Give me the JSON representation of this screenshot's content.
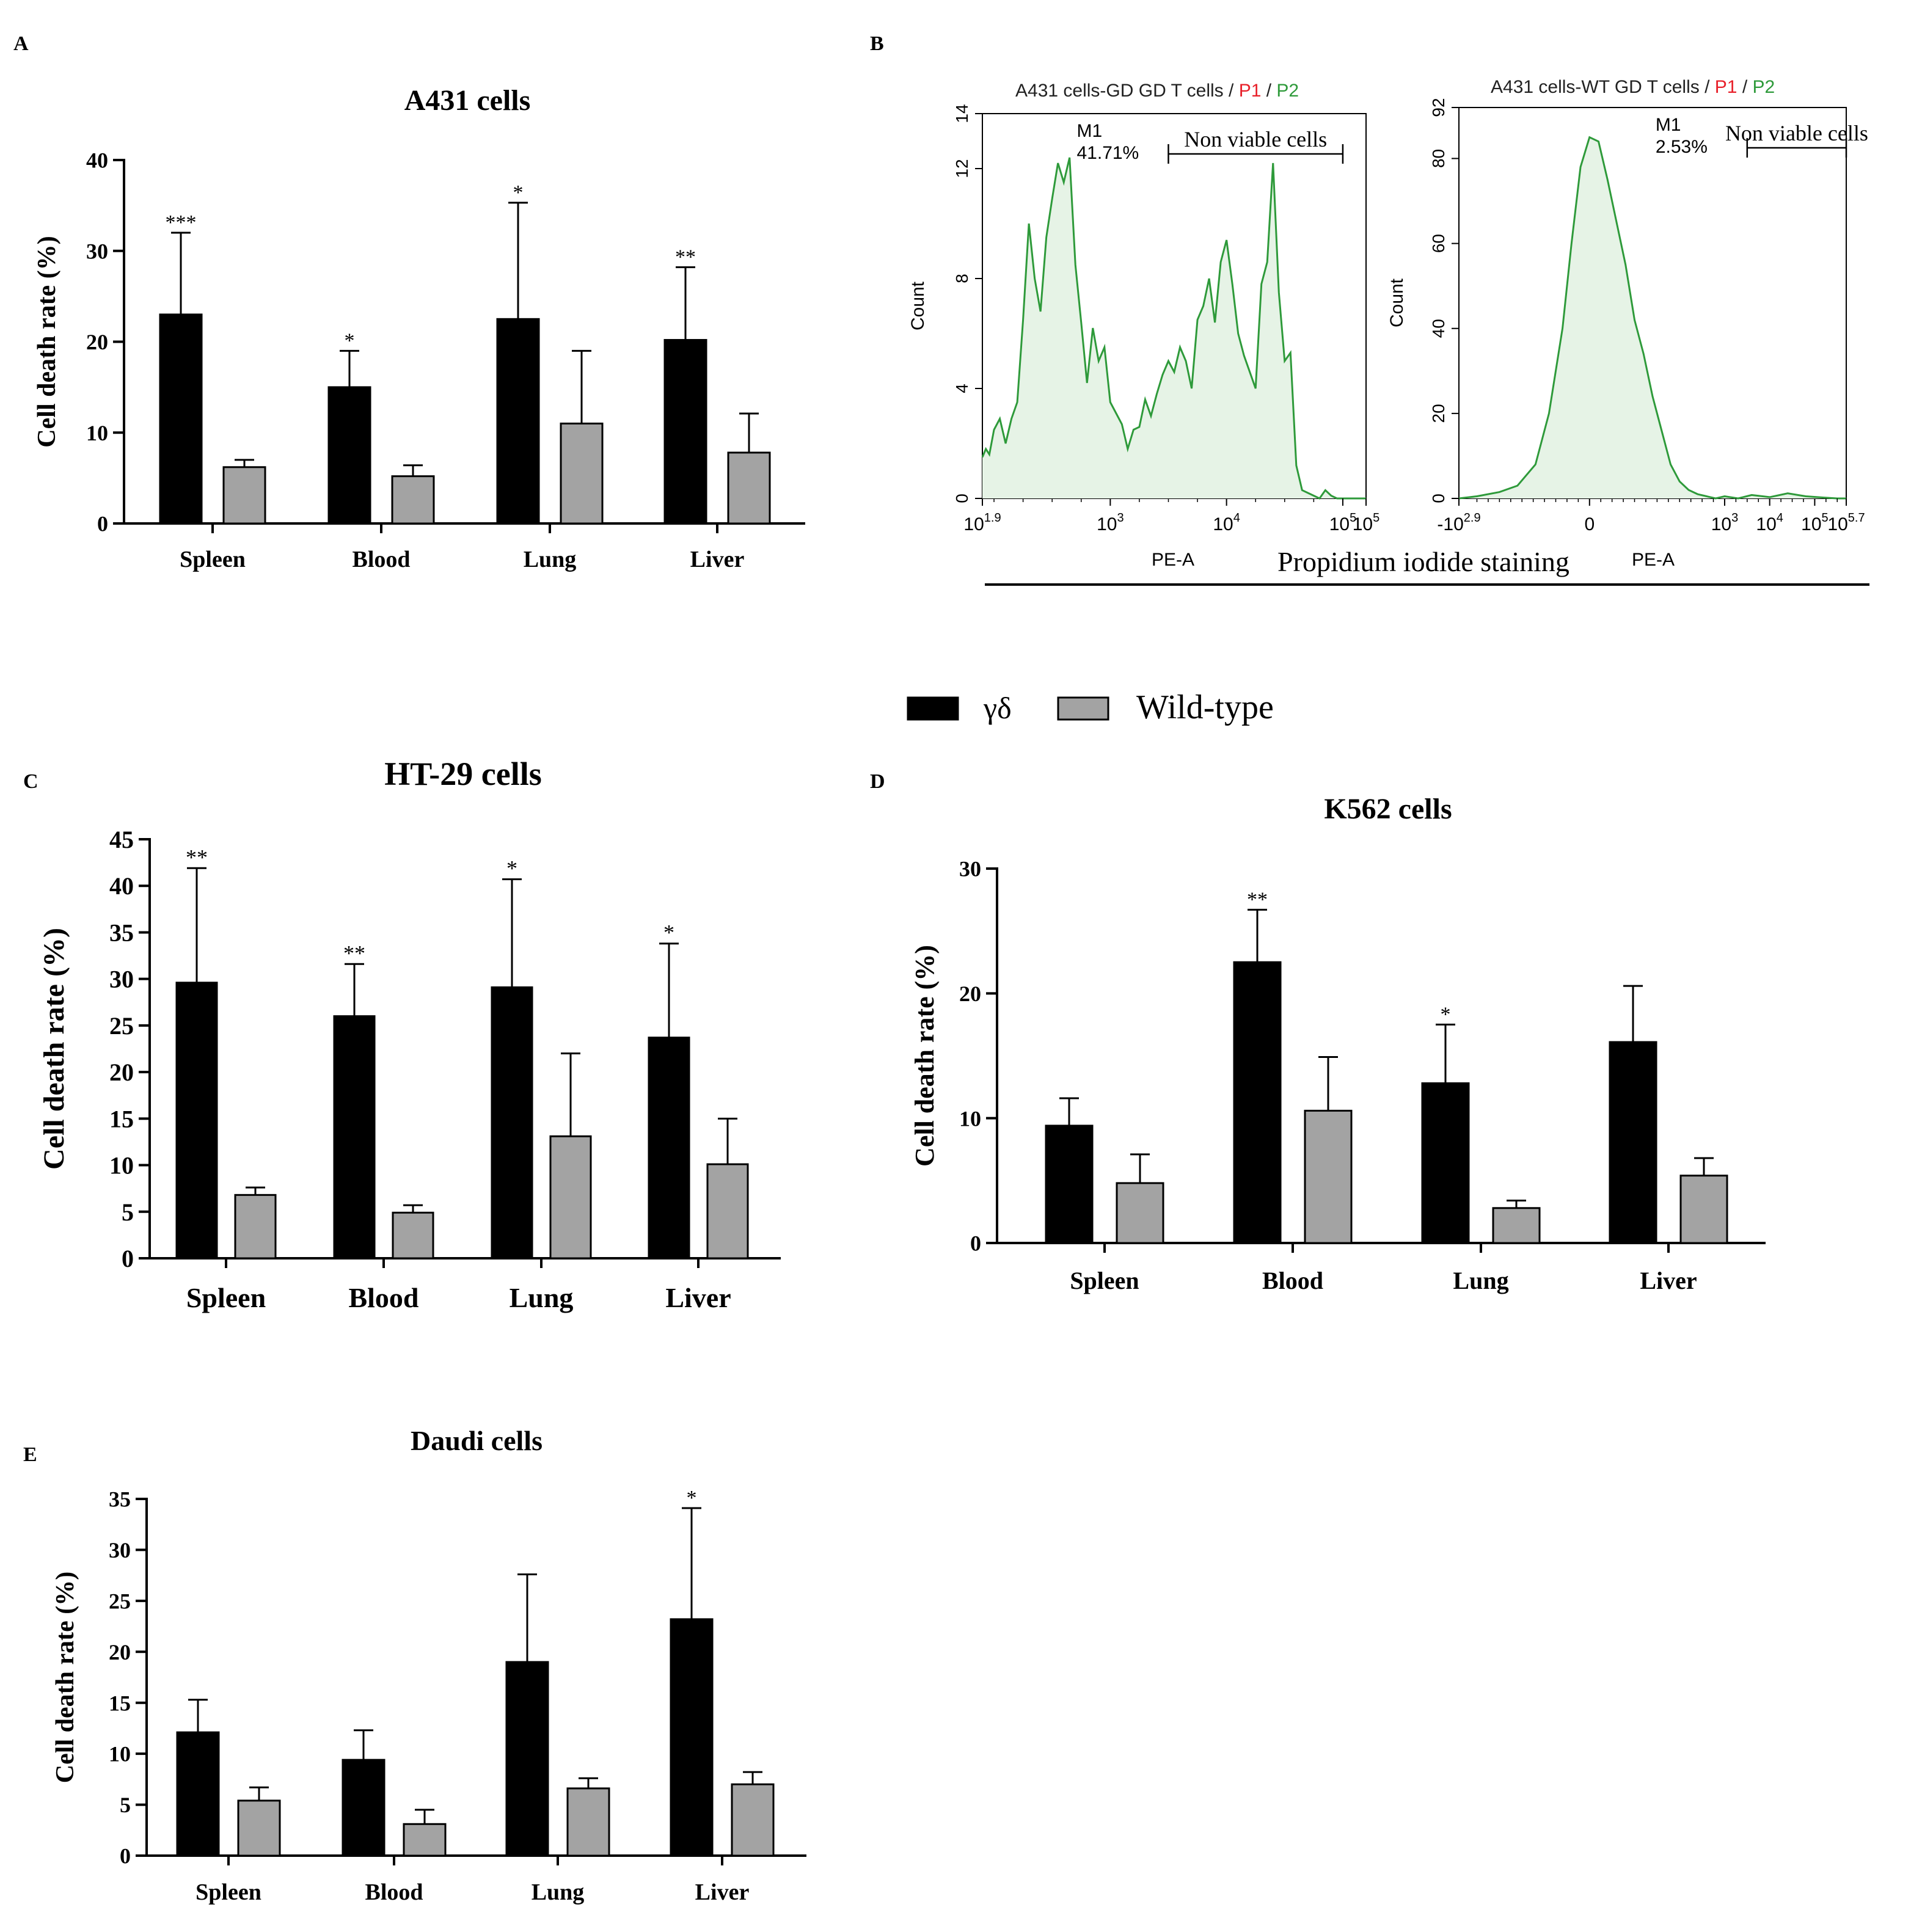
{
  "figure": {
    "legend": {
      "entries": [
        {
          "name": "γδ",
          "color": "#000000"
        },
        {
          "name": "Wild-type",
          "color": "#a3a3a3"
        }
      ]
    }
  },
  "colors": {
    "gd": "#000000",
    "wt": "#a3a3a3",
    "hist_line": "#2e9a3a",
    "hist_fill": "#e6f3e6",
    "p1": "#e8202a",
    "p2": "#2e9a3a"
  },
  "chart_data": [
    {
      "id": "A",
      "panel_label": "A",
      "type": "bar",
      "title": "A431 cells",
      "xlabel": "",
      "ylabel": "Cell death rate (%)",
      "categories": [
        "Spleen",
        "Blood",
        "Lung",
        "Liver"
      ],
      "ylim": [
        0,
        40
      ],
      "yticks": [
        "0",
        "10",
        "20",
        "30",
        "40"
      ],
      "series": [
        {
          "name": "γδ",
          "values": [
            23,
            15,
            22.5,
            20.2
          ],
          "errors": [
            9.0,
            4.0,
            12.8,
            8.0
          ]
        },
        {
          "name": "Wild-type",
          "values": [
            6.2,
            5.2,
            11.0,
            7.8
          ],
          "errors": [
            0.8,
            1.2,
            8.0,
            4.3
          ]
        }
      ],
      "significance": [
        "***",
        "*",
        "*",
        "**"
      ]
    },
    {
      "id": "C",
      "panel_label": "C",
      "type": "bar",
      "title": "HT-29 cells",
      "xlabel": "",
      "ylabel": "Cell death rate (%)",
      "categories": [
        "Spleen",
        "Blood",
        "Lung",
        "Liver"
      ],
      "ylim": [
        0,
        45
      ],
      "yticks": [
        "0",
        "5",
        "10",
        "15",
        "20",
        "25",
        "30",
        "35",
        "40",
        "45"
      ],
      "series": [
        {
          "name": "γδ",
          "values": [
            29.6,
            26,
            29.1,
            23.7
          ],
          "errors": [
            12.3,
            5.6,
            11.6,
            10.1
          ]
        },
        {
          "name": "Wild-type",
          "values": [
            6.8,
            4.9,
            13.1,
            10.1
          ],
          "errors": [
            0.8,
            0.8,
            8.9,
            4.9
          ]
        }
      ],
      "significance": [
        "**",
        "**",
        "*",
        "*"
      ]
    },
    {
      "id": "D",
      "panel_label": "D",
      "type": "bar",
      "title": "K562 cells",
      "xlabel": "",
      "ylabel": "Cell death rate (%)",
      "categories": [
        "Spleen",
        "Blood",
        "Lung",
        "Liver"
      ],
      "ylim": [
        0,
        30
      ],
      "yticks": [
        "0",
        "10",
        "20",
        "30"
      ],
      "series": [
        {
          "name": "γδ",
          "values": [
            9.4,
            22.5,
            12.8,
            16.1
          ],
          "errors": [
            2.2,
            4.2,
            4.7,
            4.5
          ]
        },
        {
          "name": "Wild-type",
          "values": [
            4.8,
            10.6,
            2.8,
            5.4
          ],
          "errors": [
            2.3,
            4.3,
            0.6,
            1.4
          ]
        }
      ],
      "significance": [
        "",
        "**",
        "*",
        ""
      ]
    },
    {
      "id": "E",
      "panel_label": "E",
      "type": "bar",
      "title": "Daudi cells",
      "xlabel": "",
      "ylabel": "Cell death rate (%)",
      "categories": [
        "Spleen",
        "Blood",
        "Lung",
        "Liver"
      ],
      "ylim": [
        0,
        35
      ],
      "yticks": [
        "0",
        "5",
        "10",
        "15",
        "20",
        "25",
        "30",
        "35"
      ],
      "series": [
        {
          "name": "γδ",
          "values": [
            12.1,
            9.4,
            19.0,
            23.2
          ],
          "errors": [
            3.2,
            2.9,
            8.6,
            10.9
          ]
        },
        {
          "name": "Wild-type",
          "values": [
            5.4,
            3.1,
            6.6,
            7.0
          ],
          "errors": [
            1.3,
            1.4,
            1.0,
            1.2
          ]
        }
      ],
      "significance": [
        "",
        "",
        "",
        "*"
      ]
    },
    {
      "id": "B1",
      "panel_label": "B",
      "type": "area",
      "title": "A431 cells-GD GD T cells / P1 / P2",
      "title_parts": [
        "A431 cells-GD GD T cells",
        " / ",
        "P1",
        " / ",
        "P2"
      ],
      "xlabel": "PE-A",
      "ylabel": "Count",
      "ylim": [
        0,
        14
      ],
      "yticks": [
        "0",
        "4",
        "8",
        "12",
        "14"
      ],
      "xlim": [
        1.9,
        5.2
      ],
      "xticks": [
        {
          "v": 1.9,
          "base": "10",
          "exp": "1.9"
        },
        {
          "v": 3,
          "base": "10",
          "exp": "3"
        },
        {
          "v": 4,
          "base": "10",
          "exp": "4"
        },
        {
          "v": 5,
          "base": "10",
          "exp": "5"
        },
        {
          "v": 5.2,
          "base": "10",
          "exp": "5"
        }
      ],
      "gate": {
        "name": "M1",
        "percent": "41.71%",
        "label": "Non viable cells",
        "from": 3.5,
        "to": 5.0
      },
      "x": [
        1.9,
        1.93,
        1.96,
        2.0,
        2.05,
        2.1,
        2.15,
        2.2,
        2.25,
        2.3,
        2.35,
        2.4,
        2.45,
        2.5,
        2.55,
        2.6,
        2.65,
        2.7,
        2.75,
        2.8,
        2.85,
        2.9,
        2.95,
        3.0,
        3.05,
        3.1,
        3.15,
        3.2,
        3.25,
        3.3,
        3.35,
        3.4,
        3.45,
        3.5,
        3.55,
        3.6,
        3.65,
        3.7,
        3.75,
        3.8,
        3.85,
        3.9,
        3.95,
        4.0,
        4.05,
        4.1,
        4.15,
        4.2,
        4.25,
        4.3,
        4.35,
        4.4,
        4.45,
        4.5,
        4.55,
        4.6,
        4.65,
        4.7,
        4.75,
        4.8,
        4.85,
        4.9,
        4.95,
        5.0,
        5.05,
        5.1,
        5.15,
        5.2
      ],
      "y": [
        1.5,
        1.8,
        1.6,
        2.5,
        2.9,
        2.0,
        2.9,
        3.5,
        6.5,
        10.0,
        8.0,
        6.8,
        9.5,
        10.9,
        12.2,
        11.5,
        12.4,
        8.5,
        6.4,
        4.2,
        6.2,
        5.0,
        5.5,
        3.5,
        3.1,
        2.7,
        1.8,
        2.5,
        2.6,
        3.6,
        3.0,
        3.8,
        4.5,
        5.0,
        4.6,
        5.5,
        5.0,
        4.0,
        6.5,
        7.0,
        8.0,
        6.4,
        8.6,
        9.4,
        7.8,
        6.0,
        5.2,
        4.6,
        4.0,
        7.8,
        8.6,
        12.2,
        7.5,
        5.0,
        5.3,
        1.2,
        0.3,
        0.2,
        0.1,
        0.0,
        0.3,
        0.1,
        0.0,
        0.0,
        0.0,
        0.0,
        0.0,
        0.0
      ]
    },
    {
      "id": "B2",
      "panel_label": "",
      "type": "area",
      "title": "A431 cells-WT GD T cells / P1 / P2",
      "title_parts": [
        "A431 cells-WT GD T cells",
        " / ",
        "P1",
        " / ",
        "P2"
      ],
      "xlabel": "PE-A",
      "ylabel": "Count",
      "ylim": [
        0,
        92
      ],
      "yticks": [
        "0",
        "20",
        "40",
        "60",
        "80",
        "92"
      ],
      "xlim": [
        -2.9,
        5.7
      ],
      "xticks": [
        {
          "v": -2.9,
          "base": "-10",
          "exp": "2.9"
        },
        {
          "v": 0,
          "base": "0",
          "exp": ""
        },
        {
          "v": 3,
          "base": "10",
          "exp": "3"
        },
        {
          "v": 4,
          "base": "10",
          "exp": "4"
        },
        {
          "v": 5,
          "base": "10",
          "exp": "5"
        },
        {
          "v": 5.7,
          "base": "10",
          "exp": "5.7"
        }
      ],
      "gate": {
        "name": "M1",
        "percent": "2.53%",
        "label": "Non viable cells",
        "from": 3.5,
        "to": 5.7
      },
      "x": [
        -2.9,
        -2.5,
        -2.0,
        -1.6,
        -1.2,
        -0.9,
        -0.6,
        -0.4,
        -0.2,
        0.0,
        0.2,
        0.4,
        0.6,
        0.8,
        1.0,
        1.2,
        1.4,
        1.6,
        1.8,
        2.0,
        2.2,
        2.4,
        2.6,
        2.8,
        3.0,
        3.3,
        3.6,
        4.0,
        4.4,
        4.8,
        5.2,
        5.5,
        5.7
      ],
      "y": [
        0,
        0.5,
        1.5,
        3,
        8,
        20,
        40,
        60,
        78,
        85,
        84,
        75,
        65,
        55,
        42,
        34,
        24,
        16,
        8,
        4,
        2,
        1,
        0.5,
        0,
        0.5,
        0,
        0.8,
        0.3,
        1.2,
        0.5,
        0.2,
        0,
        0
      ],
      "shared_xlabel": "Propidium iodide staining"
    }
  ]
}
